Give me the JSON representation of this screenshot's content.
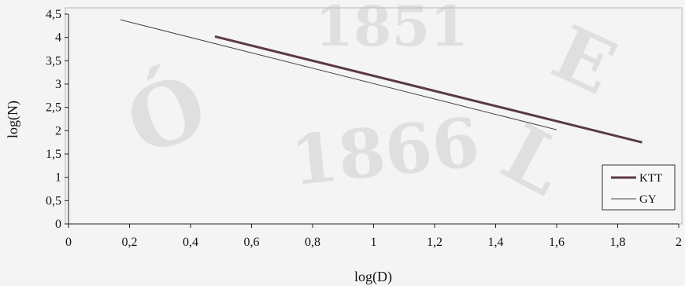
{
  "chart_data": {
    "type": "line",
    "title": "",
    "xlabel": "log(D)",
    "ylabel": "log(N)",
    "xlim": [
      0,
      2
    ],
    "ylim": [
      0,
      4.5
    ],
    "x_ticks": [
      "0",
      "0,2",
      "0,4",
      "0,6",
      "0,8",
      "1",
      "1,2",
      "1,4",
      "1,6",
      "1,8",
      "2"
    ],
    "y_ticks": [
      "0",
      "0,5",
      "1",
      "1,5",
      "2",
      "2,5",
      "3",
      "3,5",
      "4",
      "4,5"
    ],
    "grid": false,
    "legend_position": "bottom-right",
    "series": [
      {
        "name": "KTT",
        "x": [
          0.48,
          1.88
        ],
        "y": [
          4.02,
          1.75
        ],
        "color": "#5a3a40",
        "weight": "thick"
      },
      {
        "name": "GY",
        "x": [
          0.17,
          1.6
        ],
        "y": [
          4.38,
          2.02
        ],
        "color": "#444444",
        "weight": "thin"
      }
    ]
  },
  "watermark": {
    "text_top": "1851",
    "text_bottom": "1866",
    "letters": [
      "Ó",
      "E",
      "L"
    ]
  }
}
